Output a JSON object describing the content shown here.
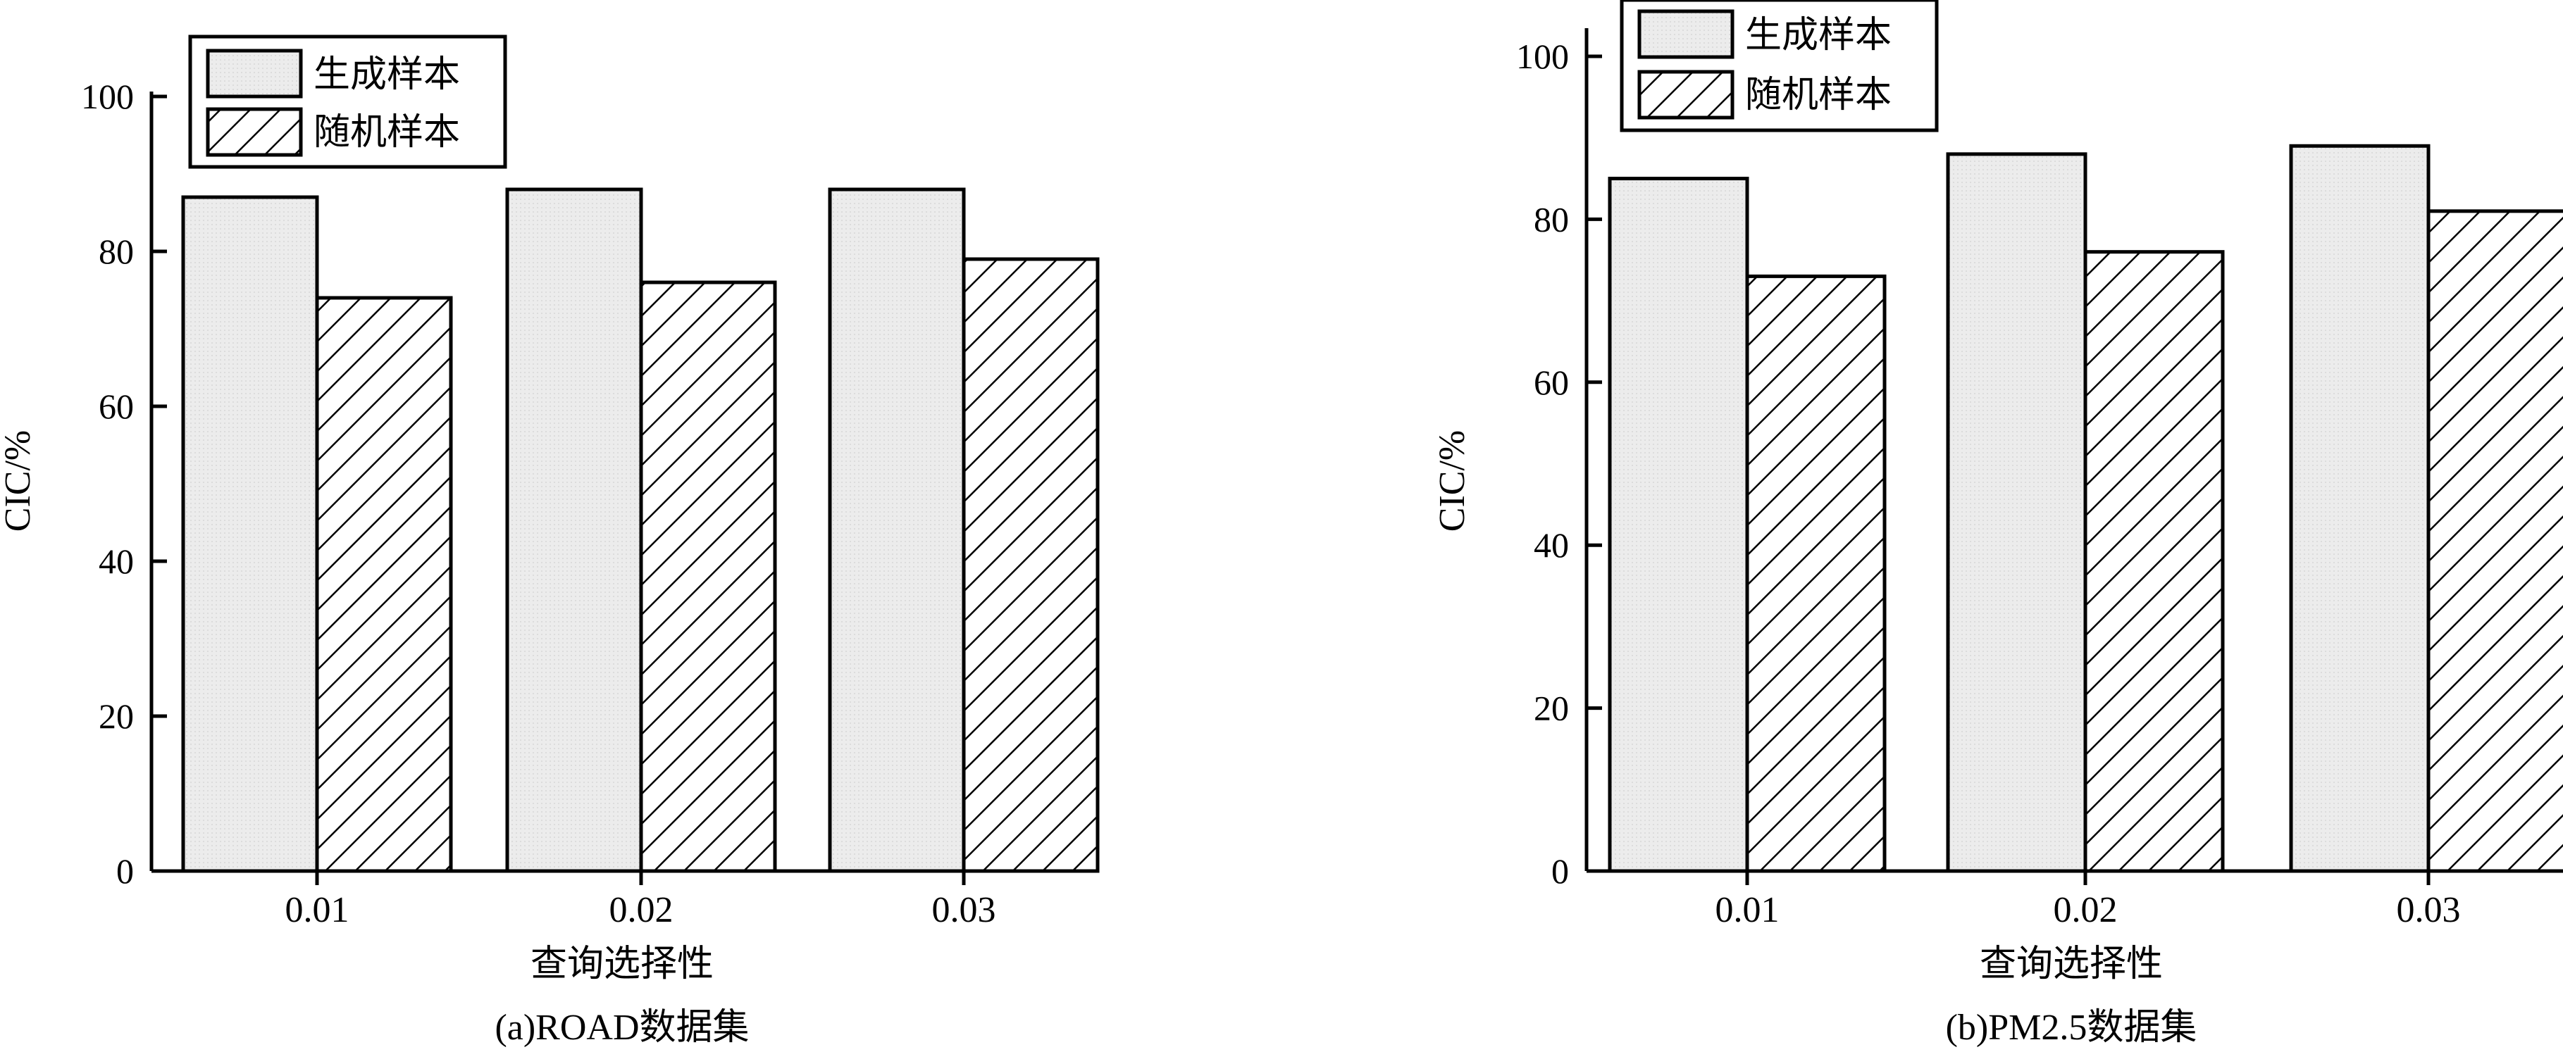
{
  "colors": {
    "generated_fill": "#ececec",
    "random_fill": "#ffffff",
    "stroke": "#000000"
  },
  "chart_data": [
    {
      "type": "bar",
      "caption": "(a)ROAD数据集",
      "xlabel": "查询选择性",
      "ylabel": "CIC/%",
      "categories": [
        "0.01",
        "0.02",
        "0.03"
      ],
      "ylim": [
        0,
        100
      ],
      "yticks": [
        "0",
        "20",
        "40",
        "60",
        "80",
        "100"
      ],
      "legend_position": "top-left",
      "grid": false,
      "series": [
        {
          "name": "生成样本",
          "pattern": "light-gray-fill",
          "values": [
            87,
            88,
            88
          ]
        },
        {
          "name": "随机样本",
          "pattern": "diagonal-hatch",
          "values": [
            74,
            76,
            79
          ]
        }
      ]
    },
    {
      "type": "bar",
      "caption": "(b)PM2.5数据集",
      "xlabel": "查询选择性",
      "ylabel": "CIC/%",
      "categories": [
        "0.01",
        "0.02",
        "0.03"
      ],
      "ylim": [
        0,
        100
      ],
      "yticks": [
        "0",
        "20",
        "40",
        "60",
        "80",
        "100"
      ],
      "legend_position": "top-left",
      "grid": false,
      "series": [
        {
          "name": "生成样本",
          "pattern": "light-gray-fill",
          "values": [
            85,
            88,
            89
          ]
        },
        {
          "name": "随机样本",
          "pattern": "diagonal-hatch",
          "values": [
            73,
            76,
            81
          ]
        }
      ]
    }
  ]
}
